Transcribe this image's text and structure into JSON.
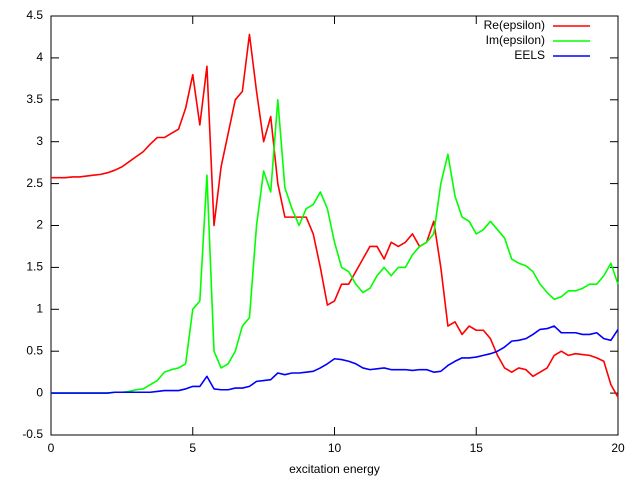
{
  "chart_data": {
    "type": "line",
    "xlabel": "excitation energy",
    "x": [
      0,
      0.25,
      0.5,
      0.75,
      1,
      1.25,
      1.5,
      1.75,
      2,
      2.25,
      2.5,
      2.75,
      3,
      3.25,
      3.5,
      3.75,
      4,
      4.25,
      4.5,
      4.75,
      5,
      5.25,
      5.5,
      5.75,
      6,
      6.25,
      6.5,
      6.75,
      7,
      7.25,
      7.5,
      7.75,
      8,
      8.25,
      8.5,
      8.75,
      9,
      9.25,
      9.5,
      9.75,
      10,
      10.25,
      10.5,
      10.75,
      11,
      11.25,
      11.5,
      11.75,
      12,
      12.25,
      12.5,
      12.75,
      13,
      13.25,
      13.5,
      13.75,
      14,
      14.25,
      14.5,
      14.75,
      15,
      15.25,
      15.5,
      15.75,
      16,
      16.25,
      16.5,
      16.75,
      17,
      17.25,
      17.5,
      17.75,
      18,
      18.25,
      18.5,
      18.75,
      19,
      19.25,
      19.5,
      19.75,
      20
    ],
    "series": [
      {
        "name": "Re(epsilon)",
        "color": "#ff0000",
        "values": [
          2.57,
          2.57,
          2.57,
          2.58,
          2.58,
          2.59,
          2.6,
          2.61,
          2.63,
          2.66,
          2.7,
          2.76,
          2.82,
          2.88,
          2.97,
          3.05,
          3.05,
          3.1,
          3.15,
          3.4,
          3.8,
          3.2,
          3.9,
          2.0,
          2.7,
          3.1,
          3.5,
          3.6,
          4.28,
          3.6,
          3.0,
          3.3,
          2.5,
          2.1,
          2.1,
          2.1,
          2.1,
          1.9,
          1.5,
          1.05,
          1.1,
          1.3,
          1.3,
          1.45,
          1.6,
          1.75,
          1.75,
          1.6,
          1.8,
          1.75,
          1.8,
          1.9,
          1.75,
          1.8,
          2.05,
          1.5,
          0.8,
          0.85,
          0.7,
          0.8,
          0.75,
          0.75,
          0.65,
          0.45,
          0.3,
          0.25,
          0.3,
          0.28,
          0.2,
          0.25,
          0.3,
          0.45,
          0.5,
          0.45,
          0.47,
          0.46,
          0.45,
          0.42,
          0.38,
          0.1,
          -0.05
        ]
      },
      {
        "name": "Im(epsilon)",
        "color": "#00ff00",
        "values": [
          0,
          0,
          0,
          0,
          0,
          0,
          0,
          0,
          0,
          0.01,
          0.01,
          0.02,
          0.04,
          0.05,
          0.1,
          0.15,
          0.25,
          0.28,
          0.3,
          0.35,
          1.0,
          1.1,
          2.6,
          0.5,
          0.3,
          0.35,
          0.5,
          0.8,
          0.9,
          2.0,
          2.65,
          2.4,
          3.5,
          2.45,
          2.2,
          2.0,
          2.2,
          2.25,
          2.4,
          2.2,
          1.8,
          1.5,
          1.45,
          1.3,
          1.2,
          1.25,
          1.4,
          1.5,
          1.4,
          1.5,
          1.5,
          1.65,
          1.75,
          1.8,
          1.9,
          2.5,
          2.85,
          2.35,
          2.1,
          2.05,
          1.9,
          1.95,
          2.05,
          1.95,
          1.85,
          1.6,
          1.55,
          1.52,
          1.45,
          1.3,
          1.2,
          1.12,
          1.15,
          1.22,
          1.22,
          1.25,
          1.3,
          1.3,
          1.4,
          1.55,
          1.3
        ]
      },
      {
        "name": "EELS",
        "color": "#0000ff",
        "values": [
          0,
          0,
          0,
          0,
          0,
          0,
          0,
          0,
          0,
          0.01,
          0.01,
          0.01,
          0.01,
          0.01,
          0.01,
          0.02,
          0.03,
          0.03,
          0.03,
          0.05,
          0.08,
          0.08,
          0.2,
          0.05,
          0.04,
          0.04,
          0.06,
          0.06,
          0.08,
          0.14,
          0.15,
          0.16,
          0.24,
          0.22,
          0.24,
          0.24,
          0.25,
          0.26,
          0.3,
          0.35,
          0.41,
          0.4,
          0.38,
          0.35,
          0.3,
          0.28,
          0.29,
          0.3,
          0.28,
          0.28,
          0.28,
          0.27,
          0.28,
          0.28,
          0.25,
          0.26,
          0.33,
          0.38,
          0.42,
          0.42,
          0.43,
          0.45,
          0.47,
          0.5,
          0.55,
          0.62,
          0.63,
          0.65,
          0.7,
          0.76,
          0.77,
          0.8,
          0.72,
          0.72,
          0.72,
          0.7,
          0.7,
          0.72,
          0.65,
          0.63,
          0.76
        ]
      }
    ],
    "xlim": [
      0,
      20
    ],
    "xticks": [
      0,
      5,
      10,
      15,
      20
    ],
    "ylim": [
      -0.5,
      4.5
    ],
    "yticks": [
      -0.5,
      0,
      0.5,
      1,
      1.5,
      2,
      2.5,
      3,
      3.5,
      4,
      4.5
    ],
    "grid": false,
    "legend": "top-right"
  }
}
